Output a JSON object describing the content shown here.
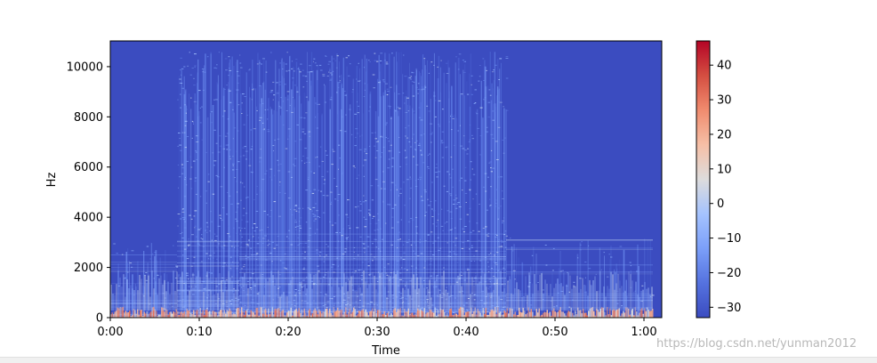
{
  "chart_data": {
    "type": "heatmap",
    "title": "",
    "xlabel": "Time",
    "ylabel": "Hz",
    "xlim_seconds": [
      0,
      62
    ],
    "ylim_hz": [
      0,
      11025
    ],
    "x_ticks": [
      {
        "value": 0,
        "label": "0:00"
      },
      {
        "value": 10,
        "label": "0:10"
      },
      {
        "value": 20,
        "label": "0:20"
      },
      {
        "value": 30,
        "label": "0:30"
      },
      {
        "value": 40,
        "label": "0:40"
      },
      {
        "value": 50,
        "label": "0:50"
      },
      {
        "value": 60,
        "label": "1:00"
      }
    ],
    "y_ticks": [
      {
        "value": 0,
        "label": "0"
      },
      {
        "value": 2000,
        "label": "2000"
      },
      {
        "value": 4000,
        "label": "4000"
      },
      {
        "value": 6000,
        "label": "6000"
      },
      {
        "value": 8000,
        "label": "8000"
      },
      {
        "value": 10000,
        "label": "10000"
      }
    ],
    "colormap": "coolwarm",
    "colorbar": {
      "range": [
        -33,
        47
      ],
      "ticks": [
        {
          "value": 40,
          "label": "40"
        },
        {
          "value": 30,
          "label": "30"
        },
        {
          "value": 20,
          "label": "20"
        },
        {
          "value": 10,
          "label": "10"
        },
        {
          "value": 0,
          "label": "0"
        },
        {
          "value": -10,
          "label": "−10"
        },
        {
          "value": -20,
          "label": "−20"
        },
        {
          "value": -30,
          "label": "−30"
        }
      ]
    },
    "segments": [
      {
        "start_s": 0,
        "end_s": 7.5,
        "max_hz": 3000,
        "level": "quiet"
      },
      {
        "start_s": 7.5,
        "end_s": 14.5,
        "max_hz": 10600,
        "level": "dense"
      },
      {
        "start_s": 14.5,
        "end_s": 44.5,
        "max_hz": 10600,
        "level": "dense"
      },
      {
        "start_s": 44.5,
        "end_s": 61,
        "max_hz": 3200,
        "level": "sparse"
      }
    ],
    "background_color": "#3b4cc0",
    "grid": false
  },
  "watermark": "https://blog.csdn.net/yunman2012"
}
